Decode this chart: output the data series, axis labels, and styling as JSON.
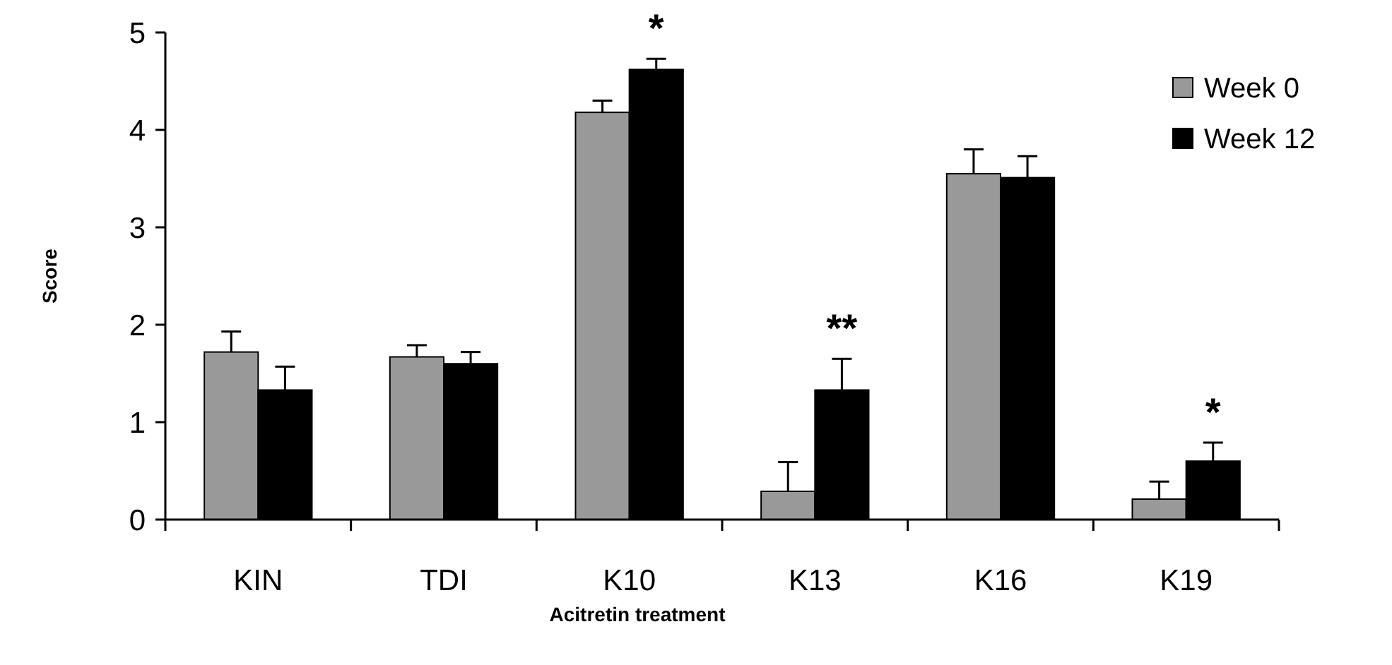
{
  "chart_data": {
    "type": "bar",
    "xlabel": "Acitretin treatment",
    "ylabel": "Score",
    "categories": [
      "KIN",
      "TDI",
      "K10",
      "K13",
      "K16",
      "K19"
    ],
    "series": [
      {
        "name": "Week 0",
        "color": "#999999",
        "values": [
          1.72,
          1.67,
          4.18,
          0.29,
          3.55,
          0.21
        ],
        "errors": [
          0.21,
          0.12,
          0.12,
          0.3,
          0.25,
          0.18
        ]
      },
      {
        "name": "Week 12",
        "color": "#000000",
        "values": [
          1.33,
          1.6,
          4.62,
          1.33,
          3.51,
          0.6
        ],
        "errors": [
          0.24,
          0.12,
          0.11,
          0.32,
          0.22,
          0.19
        ]
      }
    ],
    "ylim": [
      0,
      5
    ],
    "yticks": [
      0,
      1,
      2,
      3,
      4,
      5
    ],
    "legend": "top right",
    "annotations": [
      {
        "text": "*",
        "x": "K10",
        "y": 4.62
      },
      {
        "text": "**",
        "x": "K13",
        "y": 1.33
      },
      {
        "text": "*",
        "x": "K19",
        "y": 0.6
      }
    ]
  }
}
